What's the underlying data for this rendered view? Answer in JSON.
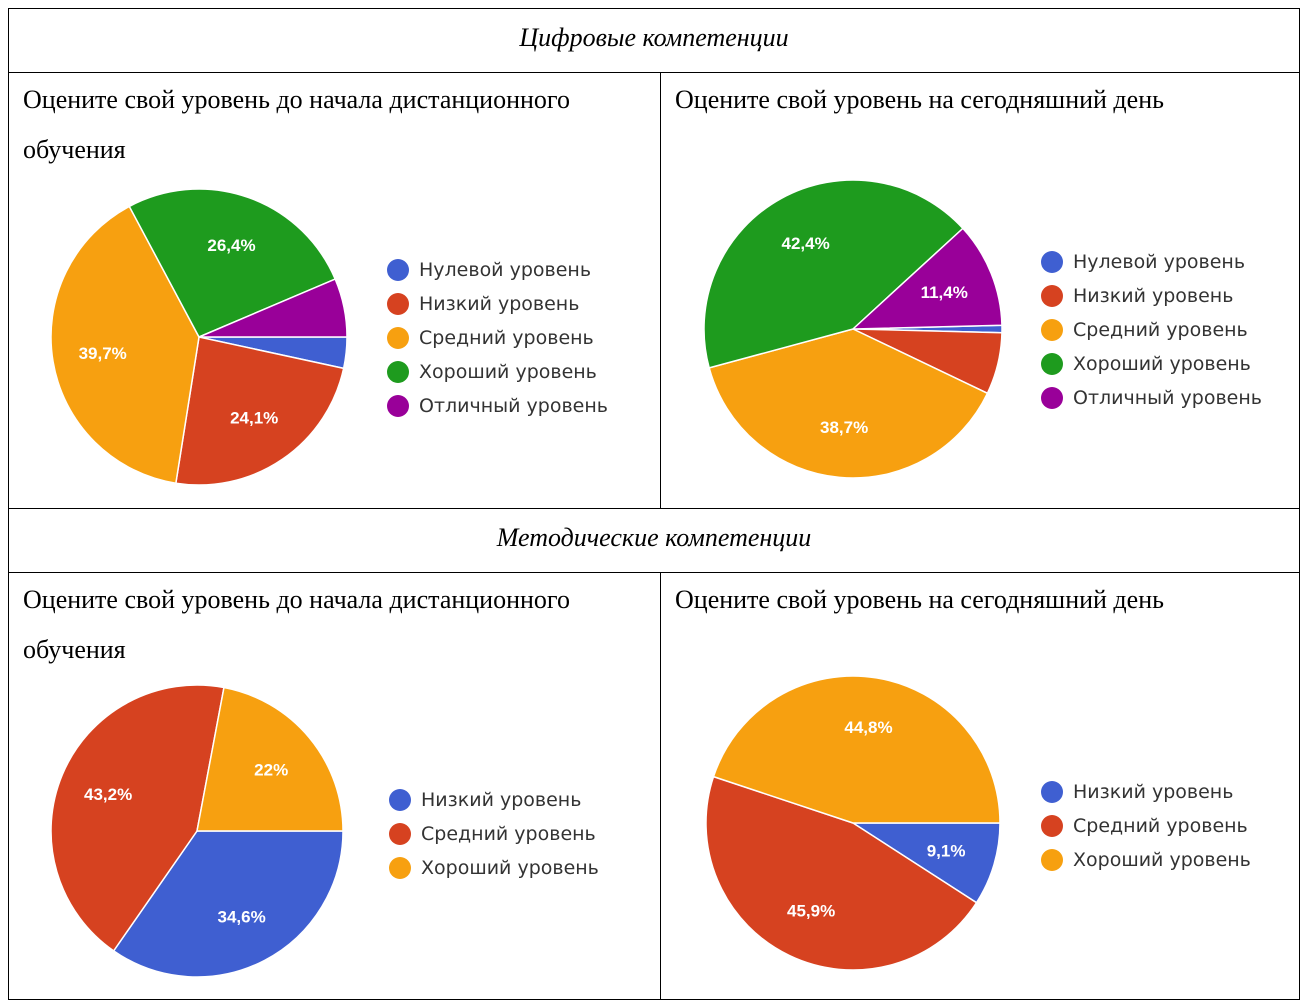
{
  "sections": [
    {
      "heading": "Цифровые компетенции",
      "left_title": "Оцените свой уровень до начала дистанционного обучения",
      "right_title": "Оцените свой уровень на сегодняшний день"
    },
    {
      "heading": "Методические компетенции",
      "left_title": "Оцените свой уровень до начала дистанционного обучения",
      "right_title": "Оцените свой уровень на сегодняшний день"
    }
  ],
  "chart_data": [
    {
      "type": "pie",
      "title": "Оцените свой уровень до начала дистанционного обучения",
      "group": "Цифровые компетенции",
      "categories": [
        "Нулевой уровень",
        "Низкий уровень",
        "Средний уровень",
        "Хороший уровень",
        "Отличный уровень"
      ],
      "values": [
        3.4,
        24.1,
        39.7,
        26.4,
        6.4
      ],
      "labels": [
        "",
        "24,1%",
        "39,7%",
        "26,4%",
        ""
      ],
      "colors": [
        "#3f5fd1",
        "#d64220",
        "#f7a010",
        "#1e9b1e",
        "#990099"
      ],
      "legend": "right"
    },
    {
      "type": "pie",
      "title": "Оцените свой уровень на сегодняшний день",
      "group": "Цифровые компетенции",
      "categories": [
        "Нулевой уровень",
        "Низкий уровень",
        "Средний уровень",
        "Хороший уровень",
        "Отличный уровень"
      ],
      "values": [
        0.8,
        6.7,
        38.7,
        42.4,
        11.4
      ],
      "labels": [
        "",
        "",
        "38,7%",
        "42,4%",
        "11,4%"
      ],
      "colors": [
        "#3f5fd1",
        "#d64220",
        "#f7a010",
        "#1e9b1e",
        "#990099"
      ],
      "legend": "right"
    },
    {
      "type": "pie",
      "title": "Оцените свой уровень до начала дистанционного обучения",
      "group": "Методические компетенции",
      "categories": [
        "Низкий уровень",
        "Средний уровень",
        "Хороший уровень"
      ],
      "values": [
        34.6,
        43.2,
        22
      ],
      "labels": [
        "34,6%",
        "43,2%",
        "22%"
      ],
      "colors": [
        "#3f5fd1",
        "#d64220",
        "#f7a010"
      ],
      "legend": "right"
    },
    {
      "type": "pie",
      "title": "Оцените свой уровень на сегодняшний день",
      "group": "Методические компетенции",
      "categories": [
        "Низкий уровень",
        "Средний уровень",
        "Хороший уровень"
      ],
      "values": [
        9.1,
        45.9,
        44.8
      ],
      "labels": [
        "9,1%",
        "45,9%",
        "44,8%"
      ],
      "colors": [
        "#3f5fd1",
        "#d64220",
        "#f7a010"
      ],
      "legend": "right"
    }
  ]
}
